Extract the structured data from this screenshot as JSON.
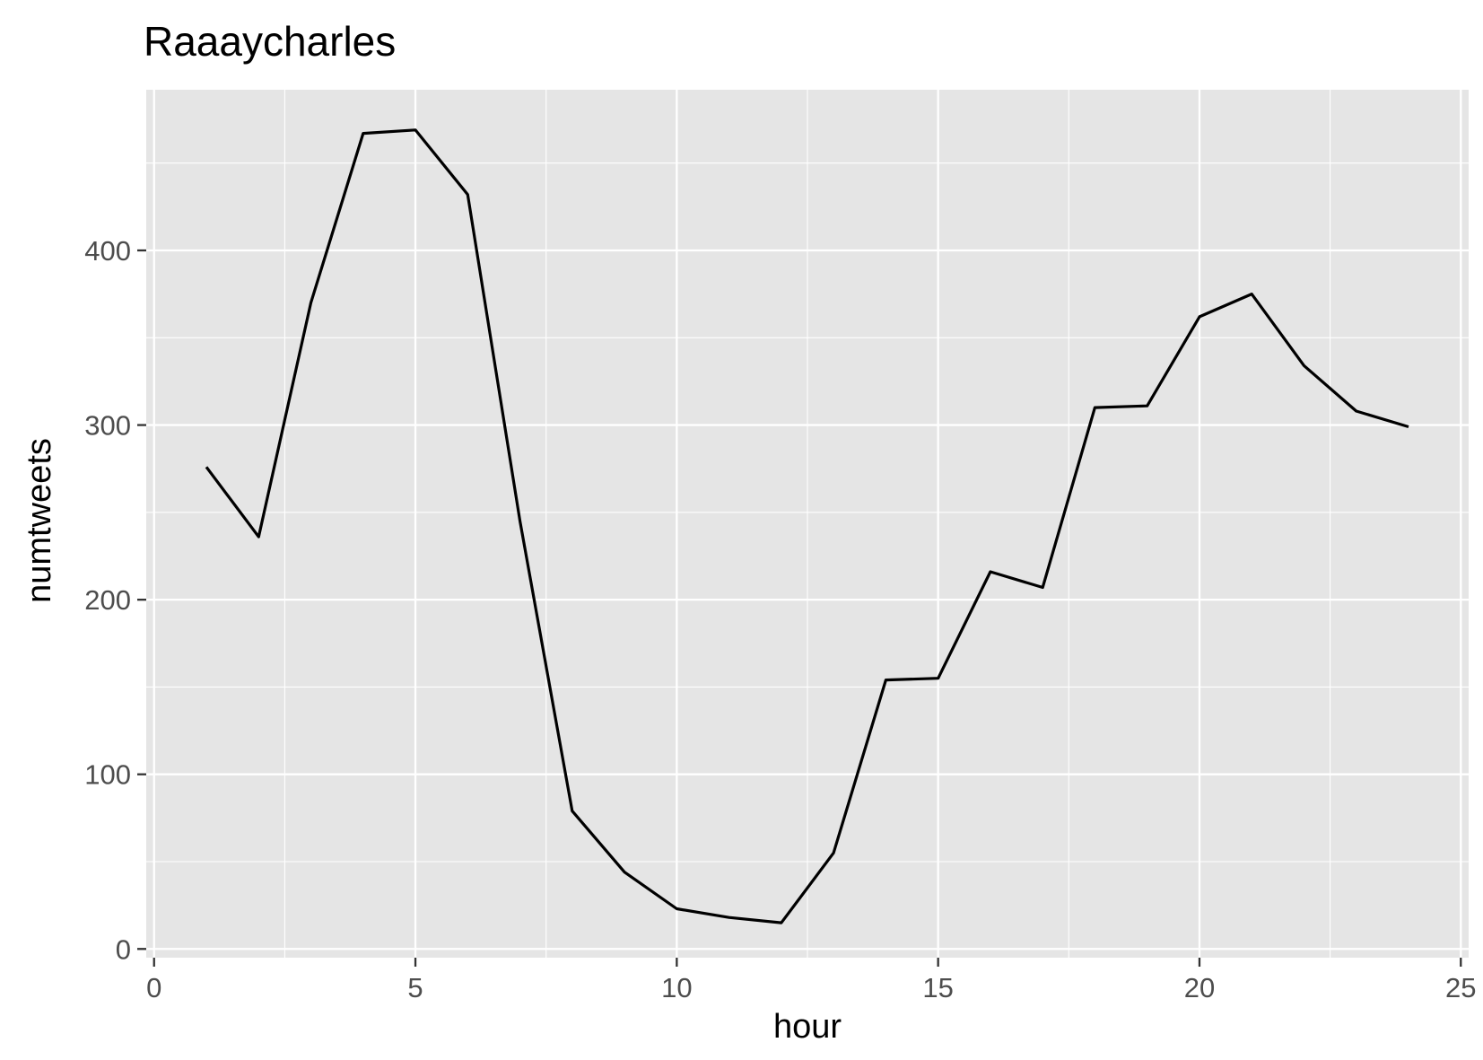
{
  "chart_data": {
    "type": "line",
    "title": "Raaaycharles",
    "xlabel": "hour",
    "ylabel": "numtweets",
    "xlim": [
      -0.15,
      25.15
    ],
    "ylim": [
      -5,
      492
    ],
    "x_ticks": [
      0,
      5,
      10,
      15,
      20,
      25
    ],
    "y_ticks": [
      0,
      100,
      200,
      300,
      400
    ],
    "grid": true,
    "legend": "none",
    "colors": {
      "panel": "#e5e5e5",
      "grid": "#ffffff",
      "line": "#000000",
      "tick": "#333333"
    },
    "series": [
      {
        "x": [
          1,
          2,
          3,
          4,
          5,
          6,
          7,
          8,
          9,
          10,
          11,
          12,
          13,
          14,
          15,
          16,
          17,
          18,
          19,
          20,
          21,
          22,
          23,
          24
        ],
        "values": [
          276,
          236,
          370,
          467,
          469,
          432,
          245,
          79,
          44,
          23,
          18,
          15,
          55,
          154,
          155,
          216,
          207,
          310,
          311,
          362,
          375,
          334,
          308,
          299
        ]
      }
    ]
  }
}
